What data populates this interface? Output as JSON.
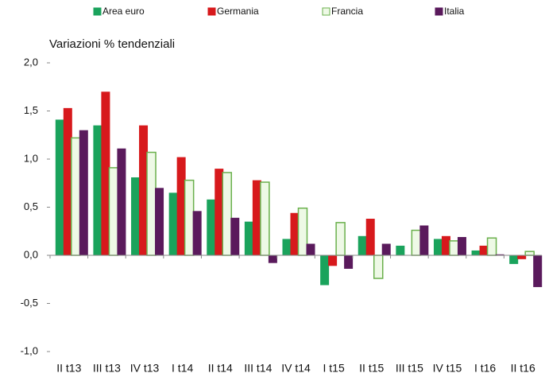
{
  "chart_data": {
    "type": "bar",
    "subtitle": "Variazioni % tendenziali",
    "categories": [
      "II t13",
      "III t13",
      "IV t13",
      "I t14",
      "II t14",
      "III t14",
      "IV t14",
      "I t15",
      "II t15",
      "III t15",
      "IV t15",
      "I t16",
      "II t16"
    ],
    "series": [
      {
        "name": "Area euro",
        "color": "#1aa35c",
        "values": [
          1.41,
          1.35,
          0.81,
          0.65,
          0.58,
          0.35,
          0.17,
          -0.31,
          0.2,
          0.1,
          0.17,
          0.05,
          -0.09
        ]
      },
      {
        "name": "Germania",
        "color": "#d7191c",
        "values": [
          1.53,
          1.7,
          1.35,
          1.02,
          0.9,
          0.78,
          0.44,
          -0.11,
          0.38,
          0.0,
          0.2,
          0.1,
          -0.04
        ]
      },
      {
        "name": "Francia",
        "color": "#6ab04c",
        "fill": "#eef9e6",
        "values": [
          1.22,
          0.91,
          1.07,
          0.78,
          0.86,
          0.76,
          0.49,
          0.34,
          -0.24,
          0.26,
          0.15,
          0.18,
          0.04
        ]
      },
      {
        "name": "Italia",
        "color": "#5a1a5c",
        "values": [
          1.3,
          1.11,
          0.7,
          0.46,
          0.39,
          -0.08,
          0.12,
          -0.14,
          0.12,
          0.31,
          0.19,
          0.01,
          -0.33
        ]
      }
    ],
    "ylim": [
      -1.0,
      2.0
    ],
    "yticks": [
      {
        "value": -1.0,
        "label": "-1,0"
      },
      {
        "value": -0.5,
        "label": "-0,5"
      },
      {
        "value": 0.0,
        "label": "0,0"
      },
      {
        "value": 0.5,
        "label": "0,5"
      },
      {
        "value": 1.0,
        "label": "1,0"
      },
      {
        "value": 1.5,
        "label": "1,5"
      },
      {
        "value": 2.0,
        "label": "2,0"
      }
    ]
  }
}
